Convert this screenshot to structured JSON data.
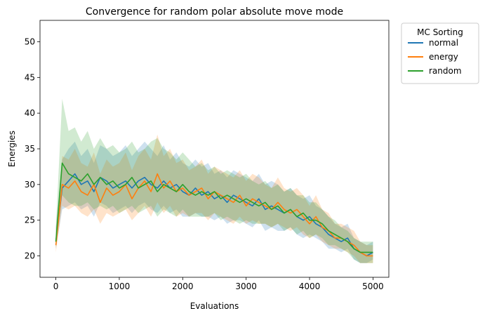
{
  "chart_data": {
    "type": "line",
    "title": "Convergence for random polar absolute move mode",
    "xlabel": "Evaluations",
    "ylabel": "Energies",
    "xlim": [
      -250,
      5250
    ],
    "ylim": [
      17.0,
      53.0
    ],
    "xticks": [
      0,
      1000,
      2000,
      3000,
      4000,
      5000
    ],
    "yticks": [
      20,
      25,
      30,
      35,
      40,
      45,
      50
    ],
    "grid": false,
    "legend": {
      "title": "MC Sorting",
      "placement": "outside-top-right"
    },
    "confidence_band": true,
    "series": [
      {
        "name": "normal",
        "color": "#1f77b4",
        "x": [
          0,
          100,
          200,
          300,
          400,
          500,
          600,
          700,
          800,
          900,
          1000,
          1100,
          1200,
          1300,
          1400,
          1500,
          1600,
          1700,
          1800,
          1900,
          2000,
          2100,
          2200,
          2300,
          2400,
          2500,
          2600,
          2700,
          2800,
          2900,
          3000,
          3100,
          3200,
          3300,
          3400,
          3500,
          3600,
          3700,
          3800,
          3900,
          4000,
          4100,
          4200,
          4300,
          4400,
          4500,
          4600,
          4700,
          4800,
          4900,
          5000
        ],
        "values": [
          22.0,
          29.5,
          30.5,
          31.5,
          30.0,
          30.5,
          29.0,
          31.0,
          30.5,
          29.5,
          30.0,
          30.5,
          29.5,
          30.5,
          31.0,
          30.0,
          29.5,
          30.5,
          29.5,
          30.0,
          29.0,
          28.5,
          29.5,
          28.5,
          29.0,
          28.0,
          28.5,
          27.5,
          28.5,
          28.0,
          27.5,
          27.0,
          28.0,
          26.5,
          27.0,
          26.5,
          26.0,
          26.5,
          25.5,
          25.0,
          25.5,
          24.5,
          24.0,
          23.0,
          22.5,
          22.0,
          22.5,
          21.0,
          20.5,
          20.0,
          20.5
        ],
        "lower": [
          21.0,
          26.5,
          27.0,
          27.5,
          26.5,
          27.0,
          25.5,
          27.5,
          27.0,
          26.0,
          26.5,
          27.0,
          26.0,
          27.0,
          27.5,
          26.5,
          26.0,
          27.0,
          26.0,
          26.5,
          25.5,
          25.5,
          26.0,
          25.5,
          25.5,
          25.0,
          25.5,
          24.5,
          25.0,
          25.0,
          24.5,
          24.0,
          25.0,
          23.5,
          24.0,
          23.5,
          23.5,
          24.0,
          23.0,
          22.5,
          23.0,
          22.5,
          22.0,
          21.0,
          21.0,
          20.5,
          21.0,
          19.5,
          19.0,
          19.0,
          19.5
        ],
        "upper": [
          24.0,
          33.5,
          35.0,
          36.0,
          34.0,
          35.0,
          33.0,
          35.5,
          35.0,
          34.0,
          34.5,
          35.5,
          34.0,
          35.0,
          36.0,
          35.0,
          34.0,
          35.5,
          33.5,
          34.5,
          33.0,
          32.5,
          33.5,
          32.5,
          33.0,
          31.5,
          32.0,
          31.0,
          32.0,
          31.5,
          31.0,
          30.5,
          31.5,
          30.0,
          30.5,
          30.0,
          29.0,
          29.5,
          28.5,
          28.0,
          28.5,
          27.0,
          26.5,
          25.5,
          24.5,
          24.0,
          24.5,
          22.5,
          22.0,
          21.5,
          22.0
        ]
      },
      {
        "name": "energy",
        "color": "#ff7f0e",
        "x": [
          0,
          100,
          200,
          300,
          400,
          500,
          600,
          700,
          800,
          900,
          1000,
          1100,
          1200,
          1300,
          1400,
          1500,
          1600,
          1700,
          1800,
          1900,
          2000,
          2100,
          2200,
          2300,
          2400,
          2500,
          2600,
          2700,
          2800,
          2900,
          3000,
          3100,
          3200,
          3300,
          3400,
          3500,
          3600,
          3700,
          3800,
          3900,
          4000,
          4100,
          4200,
          4300,
          4400,
          4500,
          4600,
          4700,
          4800,
          4900,
          5000
        ],
        "values": [
          21.5,
          30.0,
          29.5,
          30.5,
          29.0,
          28.5,
          30.0,
          27.5,
          29.5,
          28.5,
          29.0,
          30.0,
          28.0,
          29.5,
          30.5,
          29.0,
          31.5,
          29.5,
          30.5,
          29.0,
          29.5,
          28.5,
          29.0,
          29.5,
          28.0,
          29.0,
          28.5,
          28.0,
          27.5,
          28.5,
          27.0,
          28.0,
          27.5,
          27.0,
          26.5,
          27.5,
          26.5,
          26.0,
          26.5,
          25.5,
          24.5,
          25.5,
          24.0,
          23.5,
          22.5,
          22.5,
          22.0,
          21.5,
          20.5,
          20.0,
          20.0
        ],
        "lower": [
          20.5,
          27.0,
          26.5,
          27.0,
          26.0,
          25.5,
          26.5,
          24.5,
          26.0,
          25.5,
          26.0,
          26.5,
          25.0,
          26.0,
          27.0,
          25.5,
          27.5,
          26.0,
          27.0,
          25.5,
          26.0,
          25.5,
          26.0,
          26.0,
          25.0,
          26.0,
          25.5,
          25.0,
          24.5,
          25.5,
          24.5,
          25.0,
          24.5,
          24.5,
          24.0,
          24.5,
          24.0,
          23.5,
          24.0,
          23.0,
          22.5,
          23.0,
          22.0,
          21.5,
          21.0,
          21.0,
          20.5,
          20.0,
          19.0,
          19.0,
          19.0
        ],
        "upper": [
          23.5,
          34.0,
          33.5,
          35.0,
          33.0,
          32.5,
          34.5,
          31.5,
          33.5,
          32.5,
          33.0,
          34.5,
          32.0,
          34.0,
          35.0,
          33.5,
          37.0,
          34.0,
          35.0,
          33.0,
          33.5,
          32.0,
          32.5,
          33.5,
          31.5,
          32.5,
          32.0,
          31.5,
          31.0,
          32.0,
          30.5,
          31.5,
          31.0,
          30.0,
          29.5,
          31.0,
          29.5,
          29.0,
          29.5,
          28.5,
          27.0,
          28.5,
          26.5,
          26.0,
          24.5,
          24.5,
          24.0,
          23.5,
          22.0,
          21.5,
          21.5
        ]
      },
      {
        "name": "random",
        "color": "#2ca02c",
        "x": [
          0,
          100,
          200,
          300,
          400,
          500,
          600,
          700,
          800,
          900,
          1000,
          1100,
          1200,
          1300,
          1400,
          1500,
          1600,
          1700,
          1800,
          1900,
          2000,
          2100,
          2200,
          2300,
          2400,
          2500,
          2600,
          2700,
          2800,
          2900,
          3000,
          3100,
          3200,
          3300,
          3400,
          3500,
          3600,
          3700,
          3800,
          3900,
          4000,
          4100,
          4200,
          4300,
          4400,
          4500,
          4600,
          4700,
          4800,
          4900,
          5000
        ],
        "values": [
          22.0,
          33.0,
          31.5,
          31.0,
          30.5,
          31.5,
          30.0,
          31.0,
          30.0,
          30.5,
          29.5,
          30.0,
          31.0,
          29.5,
          30.0,
          30.5,
          29.0,
          30.0,
          29.5,
          29.0,
          30.0,
          29.0,
          28.5,
          29.0,
          28.5,
          29.0,
          28.0,
          28.5,
          28.0,
          27.5,
          28.0,
          27.5,
          27.0,
          27.5,
          26.5,
          27.0,
          26.0,
          26.5,
          25.5,
          26.0,
          25.0,
          25.0,
          24.5,
          23.5,
          23.0,
          22.5,
          22.0,
          21.0,
          20.5,
          20.5,
          20.5
        ],
        "lower": [
          21.0,
          28.5,
          27.5,
          27.0,
          27.0,
          27.5,
          26.5,
          27.0,
          26.5,
          27.0,
          26.0,
          26.5,
          27.0,
          26.0,
          26.5,
          27.0,
          25.5,
          26.5,
          26.0,
          25.5,
          26.5,
          25.5,
          25.5,
          25.5,
          25.5,
          26.0,
          25.0,
          25.5,
          25.0,
          24.5,
          25.0,
          24.5,
          24.5,
          24.5,
          24.0,
          24.5,
          23.5,
          24.0,
          23.0,
          23.5,
          22.5,
          23.0,
          22.5,
          21.5,
          21.5,
          21.0,
          20.5,
          19.5,
          19.0,
          19.0,
          19.0
        ],
        "upper": [
          24.0,
          42.0,
          37.5,
          38.0,
          36.0,
          37.5,
          35.0,
          36.5,
          35.0,
          35.5,
          34.5,
          35.0,
          36.0,
          34.5,
          35.0,
          36.0,
          36.5,
          35.0,
          34.5,
          33.5,
          34.5,
          33.5,
          32.5,
          33.0,
          32.0,
          32.5,
          31.5,
          32.0,
          31.5,
          31.0,
          31.5,
          30.5,
          30.0,
          30.5,
          29.5,
          30.0,
          29.0,
          29.5,
          28.5,
          28.5,
          27.5,
          27.5,
          26.5,
          25.5,
          25.0,
          24.0,
          23.5,
          22.5,
          22.0,
          22.0,
          22.0
        ]
      }
    ]
  }
}
